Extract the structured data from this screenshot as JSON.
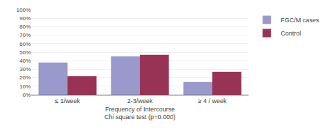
{
  "chart_data": {
    "type": "bar",
    "categories": [
      "≤ 1/week",
      "2-3/week",
      "≥ 4 / week"
    ],
    "series": [
      {
        "name": "FGC/M cases",
        "color": "#9999cc",
        "values": [
          38,
          45,
          15
        ]
      },
      {
        "name": "Control",
        "color": "#993355",
        "values": [
          22,
          47,
          27
        ]
      }
    ],
    "xlabel": "Frequency of Intercourse\nChi square test (p=0.000)",
    "ylim": [
      0,
      100
    ],
    "yticks": [
      {
        "value": 0,
        "label": "0%"
      },
      {
        "value": 10,
        "label": "10%"
      },
      {
        "value": 20,
        "label": "20%"
      },
      {
        "value": 30,
        "label": "30%"
      },
      {
        "value": 40,
        "label": "40%"
      },
      {
        "value": 50,
        "label": "50%"
      },
      {
        "value": 60,
        "label": "60%"
      },
      {
        "value": 70,
        "label": "70%"
      },
      {
        "value": 80,
        "label": "80%"
      },
      {
        "value": 90,
        "label": "90%"
      },
      {
        "value": 100,
        "label": "100%"
      }
    ],
    "grid": true,
    "legend": "upper right"
  }
}
